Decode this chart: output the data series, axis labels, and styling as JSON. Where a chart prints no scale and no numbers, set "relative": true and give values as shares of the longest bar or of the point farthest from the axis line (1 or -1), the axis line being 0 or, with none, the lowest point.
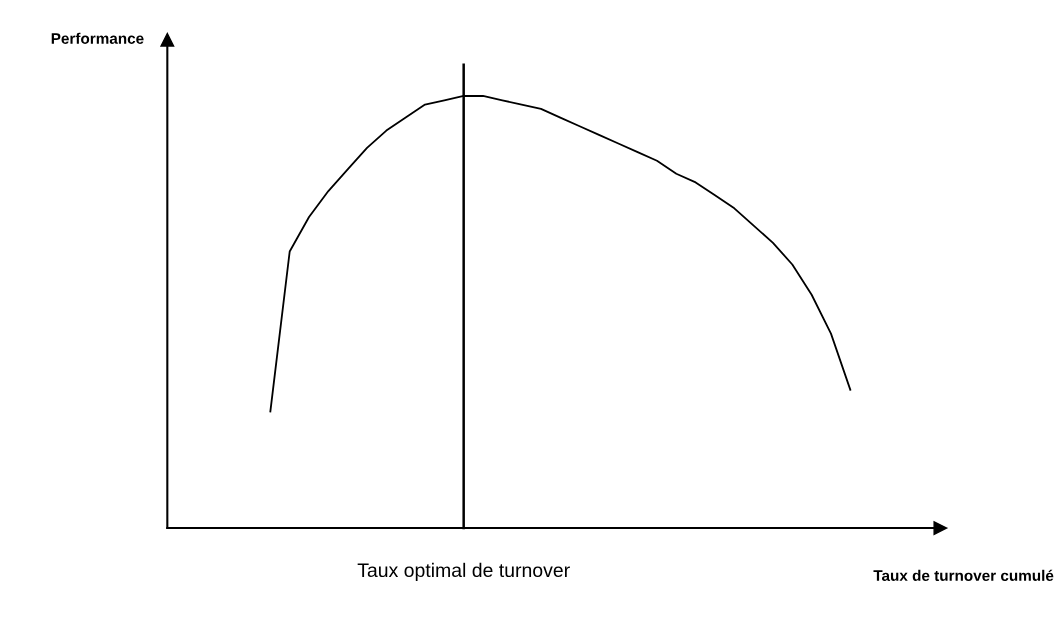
{
  "chart_data": {
    "type": "line",
    "relative": true,
    "xlabel": "Taux de turnover cumulé",
    "categories": [
      null,
      null,
      null,
      null,
      null,
      null,
      null,
      null,
      null,
      null,
      null,
      null,
      null,
      null,
      null,
      null,
      null,
      null,
      null,
      null,
      null,
      null,
      null,
      null,
      null,
      null,
      null,
      null,
      null,
      null,
      null
    ],
    "series": [
      {
        "color": "#000000",
        "values": [
          0.27,
          0.64,
          0.72,
          0.78,
          0.83,
          0.88,
          0.92,
          0.95,
          0.98,
          0.99,
          1.0,
          1.0,
          0.99,
          0.98,
          0.97,
          0.95,
          0.93,
          0.91,
          0.89,
          0.87,
          0.85,
          0.82,
          0.8,
          0.77,
          0.74,
          0.7,
          0.66,
          0.61,
          0.54,
          0.45,
          0.32
        ]
      }
    ],
    "annotations": [
      "Performance",
      "Taux optimal de turnover"
    ],
    "tick_labels": false,
    "marker": "none",
    "line_style": "solid"
  }
}
